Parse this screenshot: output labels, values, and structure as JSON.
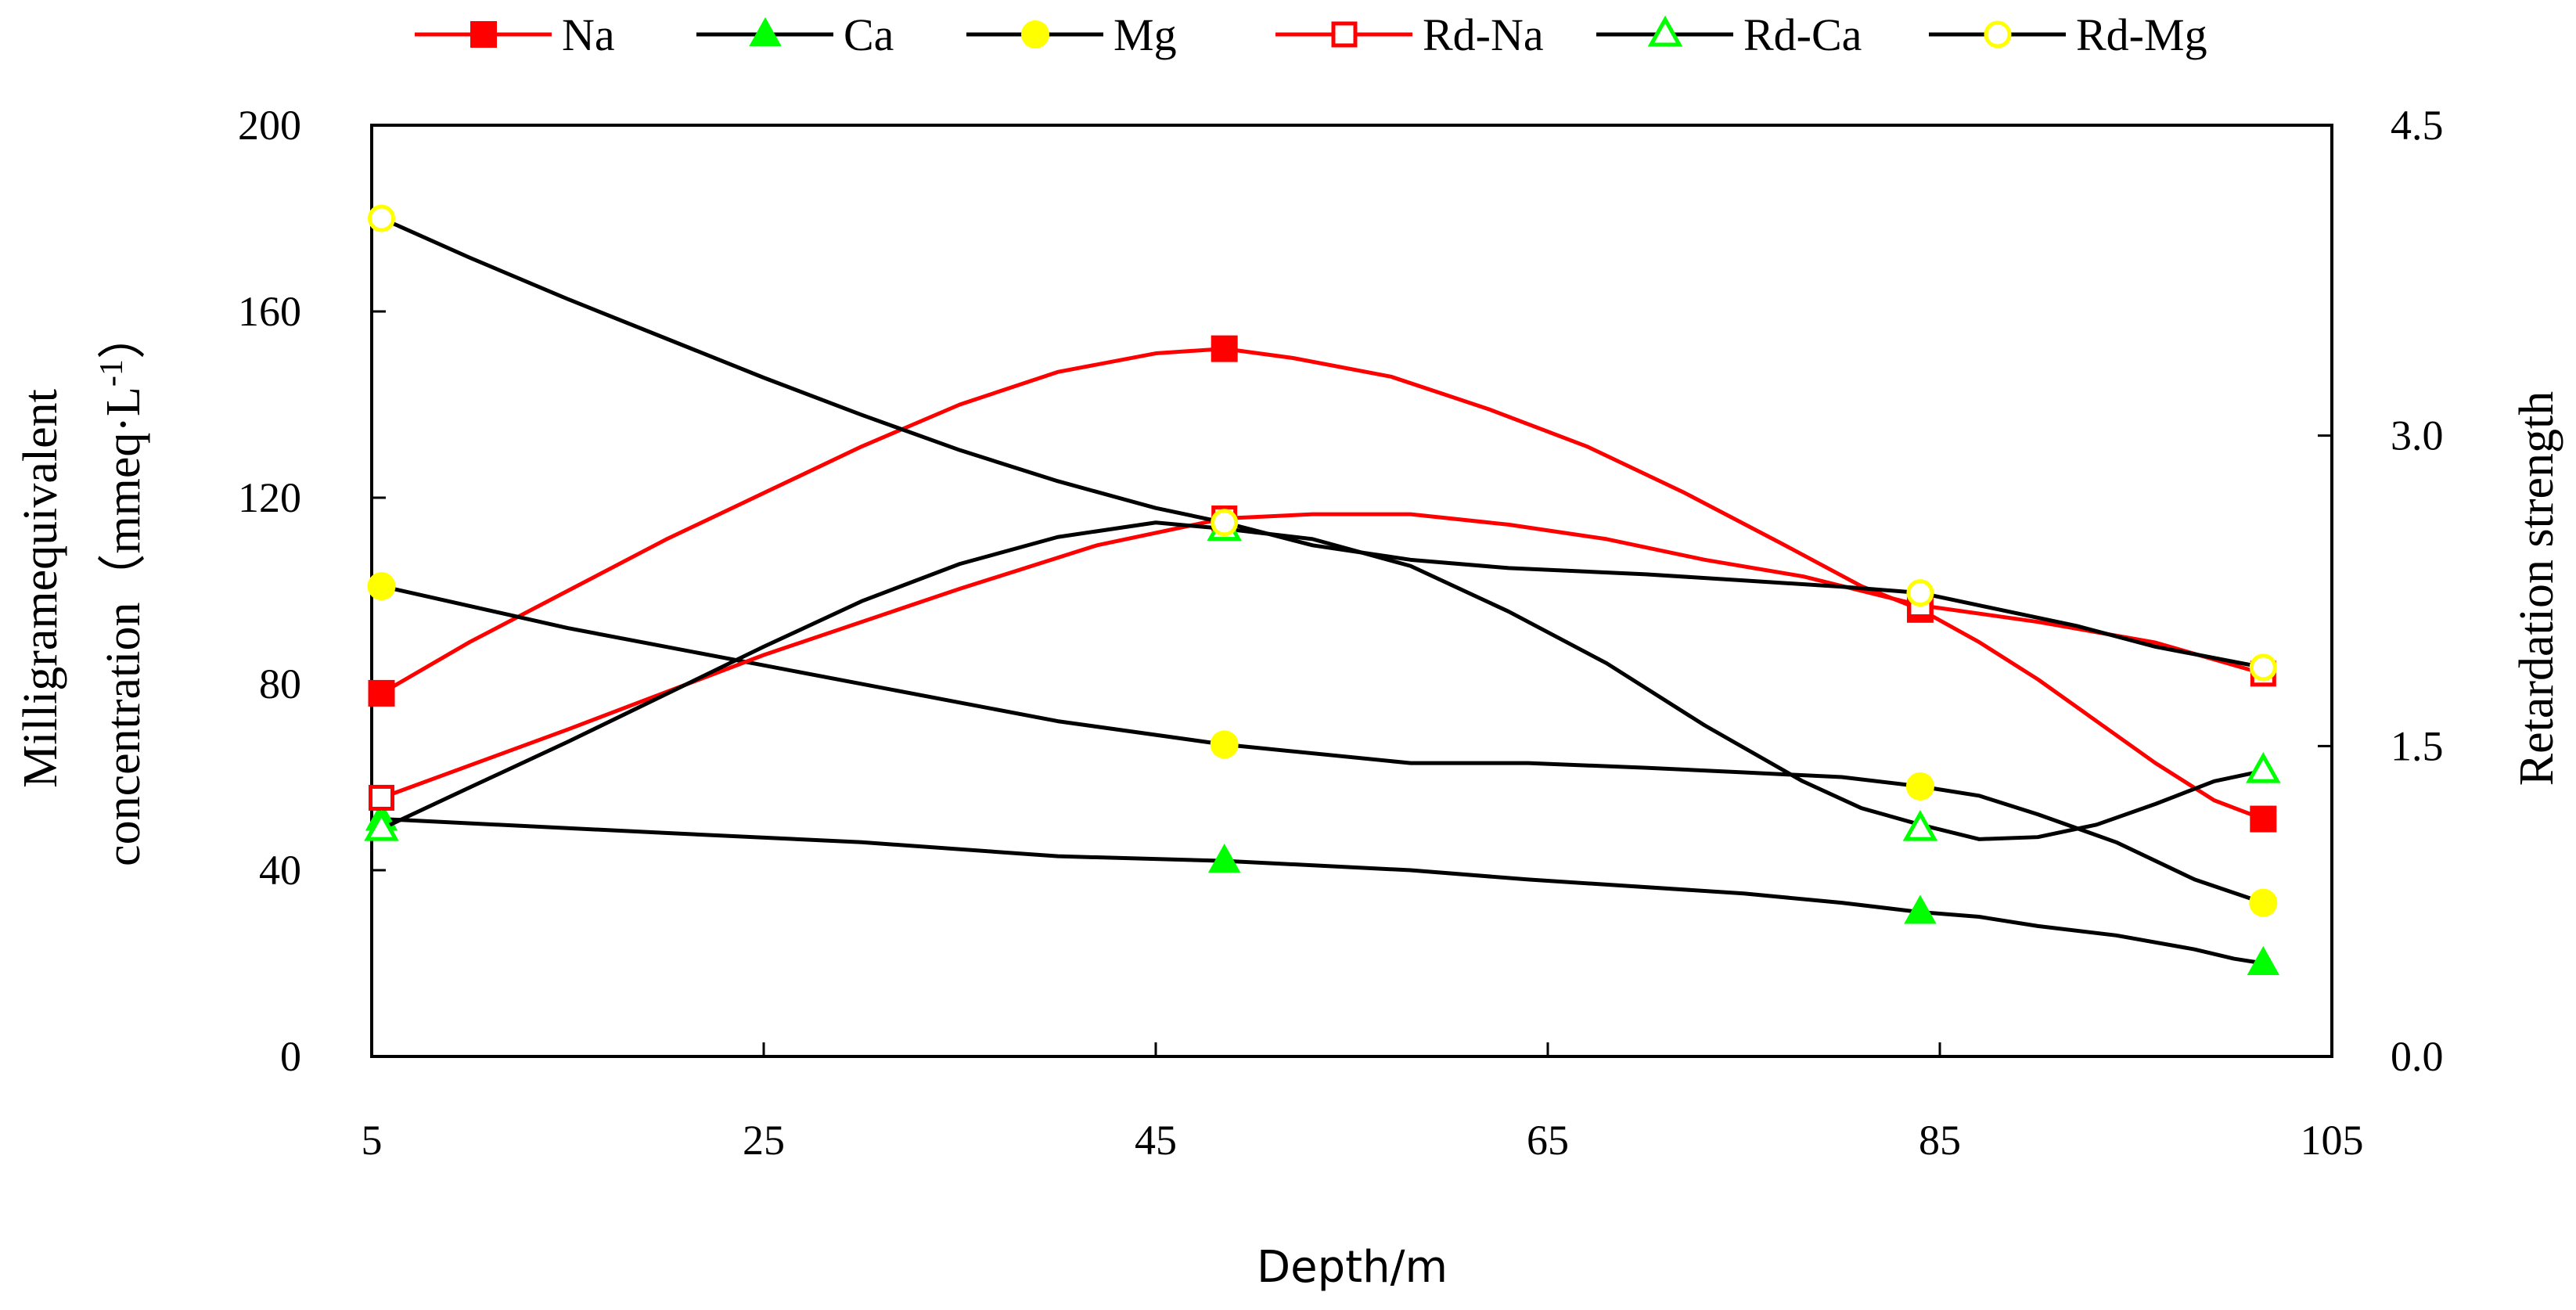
{
  "chart_data": {
    "type": "line",
    "xlabel": "Depth/m",
    "ylabel_left_line1": "Milligramequivalent",
    "ylabel_left_line2": "concentration（mmeq·L",
    "ylabel_left_sup": "-1",
    "ylabel_left_close": "）",
    "ylabel_right": "Retardation strength",
    "xlim": [
      5,
      105
    ],
    "ylim_left": [
      0,
      200
    ],
    "ylim_right": [
      0,
      4.5
    ],
    "xticks": [
      5,
      25,
      45,
      65,
      85,
      105
    ],
    "yticks_left": [
      0,
      40,
      80,
      120,
      160,
      200
    ],
    "yticks_right": [
      "0.0",
      "1.5",
      "3.0",
      "4.5"
    ],
    "legend_position": "top",
    "series": [
      {
        "name": "Na",
        "axis": "left",
        "color": "#ff0000",
        "marker": "square-filled",
        "x": [
          5.5,
          48.5,
          84,
          101.5
        ],
        "values": [
          78,
          152,
          96,
          51
        ],
        "curve_x": [
          5.5,
          10,
          15,
          20,
          25,
          30,
          35,
          40,
          45,
          48.5,
          52,
          57,
          62,
          67,
          72,
          77,
          81,
          84,
          87,
          90,
          93,
          96,
          99,
          101.5
        ],
        "curve_y": [
          78,
          89,
          100,
          111,
          121,
          131,
          140,
          147,
          151,
          152,
          150,
          146,
          139,
          131,
          121,
          110,
          101,
          96,
          89,
          81,
          72,
          63,
          55,
          51
        ]
      },
      {
        "name": "Ca",
        "axis": "left",
        "color": "#000000",
        "marker": "triangle-filled",
        "marker_color": "#00ff00",
        "x": [
          5.5,
          48.5,
          84,
          101.5
        ],
        "values": [
          51,
          42,
          31,
          20
        ],
        "curve_x": [
          5.5,
          20,
          30,
          40,
          48.5,
          58,
          64,
          75,
          80,
          84,
          87,
          90,
          94,
          98,
          100,
          101.5
        ],
        "curve_y": [
          51,
          48,
          46,
          43,
          42,
          40,
          38,
          35,
          33,
          31,
          30,
          28,
          26,
          23,
          21,
          20
        ]
      },
      {
        "name": "Mg",
        "axis": "left",
        "color": "#000000",
        "marker": "circle-filled",
        "marker_color": "#ffff00",
        "x": [
          5.5,
          48.5,
          84,
          101.5
        ],
        "values": [
          101,
          67,
          58,
          33
        ],
        "curve_x": [
          5.5,
          15,
          25,
          35,
          40,
          48.5,
          58,
          64,
          70,
          75,
          80,
          84,
          87,
          90,
          94,
          98,
          101.5
        ],
        "curve_y": [
          101,
          92,
          84,
          76,
          72,
          67,
          63,
          63,
          62,
          61,
          60,
          58,
          56,
          52,
          46,
          38,
          33
        ]
      },
      {
        "name": "Rd-Na",
        "axis": "right",
        "color": "#ff0000",
        "marker": "square-open",
        "x": [
          5.5,
          48.5,
          84,
          101.5
        ],
        "values": [
          1.25,
          2.6,
          2.18,
          1.85
        ],
        "curve_x": [
          5.5,
          15,
          25,
          35,
          42,
          48.5,
          53,
          58,
          63,
          68,
          73,
          78,
          84,
          90,
          96,
          101.5
        ],
        "curve_y": [
          1.25,
          1.58,
          1.94,
          2.26,
          2.47,
          2.6,
          2.62,
          2.62,
          2.57,
          2.5,
          2.4,
          2.32,
          2.18,
          2.1,
          2,
          1.85
        ]
      },
      {
        "name": "Rd-Ca",
        "axis": "right",
        "color": "#000000",
        "marker": "triangle-open",
        "marker_color": "#00ff00",
        "x": [
          5.5,
          48.5,
          84,
          101.5
        ],
        "values": [
          1.1,
          2.55,
          1.1,
          1.38
        ],
        "curve_x": [
          5.5,
          10,
          15,
          20,
          25,
          30,
          35,
          40,
          45,
          48.5,
          53,
          58,
          63,
          68,
          73,
          78,
          81,
          84,
          87,
          90,
          93,
          96,
          99,
          101.5
        ],
        "curve_y": [
          1.1,
          1.3,
          1.52,
          1.75,
          1.98,
          2.2,
          2.38,
          2.51,
          2.58,
          2.55,
          2.5,
          2.37,
          2.15,
          1.9,
          1.6,
          1.33,
          1.2,
          1.12,
          1.05,
          1.06,
          1.12,
          1.22,
          1.33,
          1.38
        ]
      },
      {
        "name": "Rd-Mg",
        "axis": "right",
        "color": "#000000",
        "marker": "circle-open",
        "marker_color": "#ffff00",
        "x": [
          5.5,
          48.5,
          84,
          101.5
        ],
        "values": [
          4.05,
          2.58,
          2.24,
          1.88
        ],
        "curve_x": [
          5.5,
          10,
          15,
          20,
          25,
          30,
          35,
          40,
          45,
          48.5,
          53,
          58,
          63,
          70,
          75,
          80,
          84,
          88,
          92,
          96,
          101.5
        ],
        "curve_y": [
          4.05,
          3.86,
          3.66,
          3.47,
          3.28,
          3.1,
          2.93,
          2.78,
          2.65,
          2.58,
          2.47,
          2.4,
          2.36,
          2.33,
          2.3,
          2.27,
          2.24,
          2.16,
          2.08,
          1.98,
          1.88
        ]
      }
    ]
  }
}
